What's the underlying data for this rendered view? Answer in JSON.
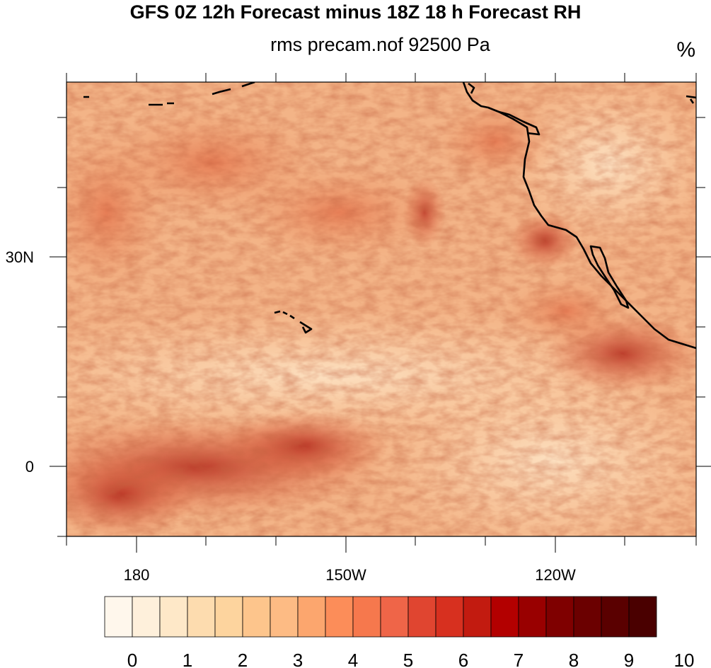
{
  "title": "GFS 0Z 12h Forecast minus 18Z 18 h Forecast RH",
  "subtitle": "rms precam.nof 92500 Pa",
  "units": "%",
  "lat_labels": [
    "30N",
    "0"
  ],
  "lon_labels": [
    "180",
    "150W",
    "120W"
  ],
  "colorbar": {
    "labels": [
      "0",
      "1",
      "2",
      "3",
      "4",
      "5",
      "6",
      "7",
      "8",
      "9",
      "10"
    ],
    "colors": [
      "#fff7ec",
      "#fef0db",
      "#fee8c8",
      "#fddcaf",
      "#fdd49e",
      "#fdc58c",
      "#fdbb84",
      "#fca66e",
      "#fc8d59",
      "#f6784d",
      "#ef6548",
      "#e04530",
      "#d7301f",
      "#c21b10",
      "#b30000",
      "#990000",
      "#7f0000",
      "#6b0000",
      "#5a0000",
      "#4a0000"
    ]
  }
}
